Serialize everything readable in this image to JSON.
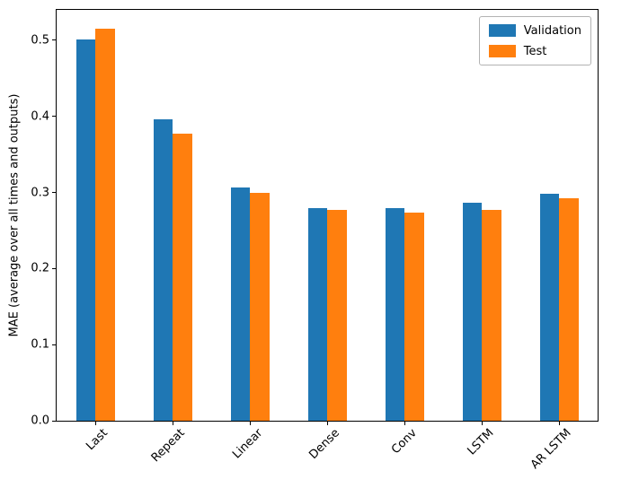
{
  "chart_data": {
    "type": "bar",
    "title": "",
    "xlabel": "",
    "ylabel": "MAE (average over all times and outputs)",
    "categories": [
      "Last",
      "Repeat",
      "Linear",
      "Dense",
      "Conv",
      "LSTM",
      "AR LSTM"
    ],
    "series": [
      {
        "name": "Validation",
        "color": "#1f77b4",
        "values": [
          0.501,
          0.396,
          0.306,
          0.28,
          0.28,
          0.286,
          0.298
        ]
      },
      {
        "name": "Test",
        "color": "#ff7f0e",
        "values": [
          0.515,
          0.377,
          0.299,
          0.277,
          0.274,
          0.277,
          0.292
        ]
      }
    ],
    "ylim": [
      0,
      0.54
    ],
    "yticks": [
      0.0,
      0.1,
      0.2,
      0.3,
      0.4,
      0.5
    ],
    "grid": false,
    "legend_position": "upper right"
  }
}
